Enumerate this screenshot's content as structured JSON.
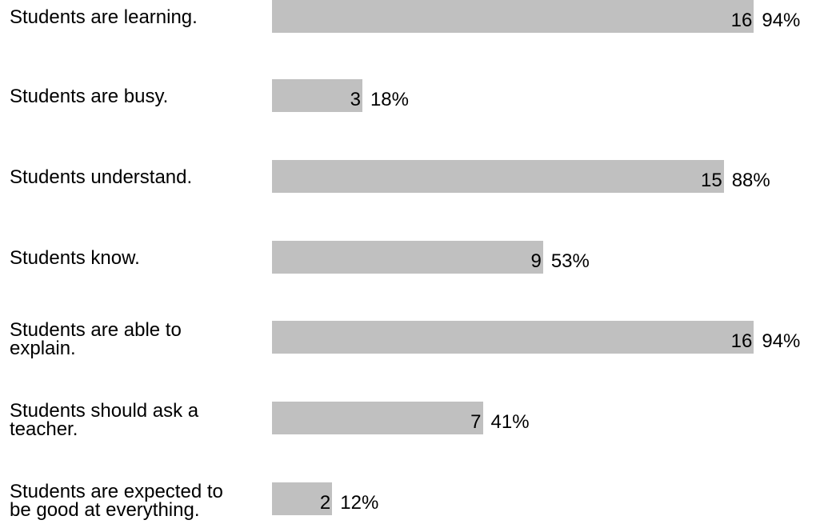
{
  "chart_data": {
    "type": "bar",
    "orientation": "horizontal",
    "categories": [
      "Students are learning.",
      "Students are busy.",
      "Students understand.",
      "Students know.",
      "Students are able to\nexplain.",
      "Students should ask a\nteacher.",
      "Students are expected to\nbe good at everything."
    ],
    "values": [
      16,
      3,
      15,
      9,
      16,
      7,
      2
    ],
    "percent_labels": [
      "94%",
      "18%",
      "88%",
      "53%",
      "94%",
      "41%",
      "12%"
    ],
    "xlim": [
      0,
      17
    ],
    "bar_color": "#c0c0c0",
    "grid": false,
    "legend": "none"
  }
}
